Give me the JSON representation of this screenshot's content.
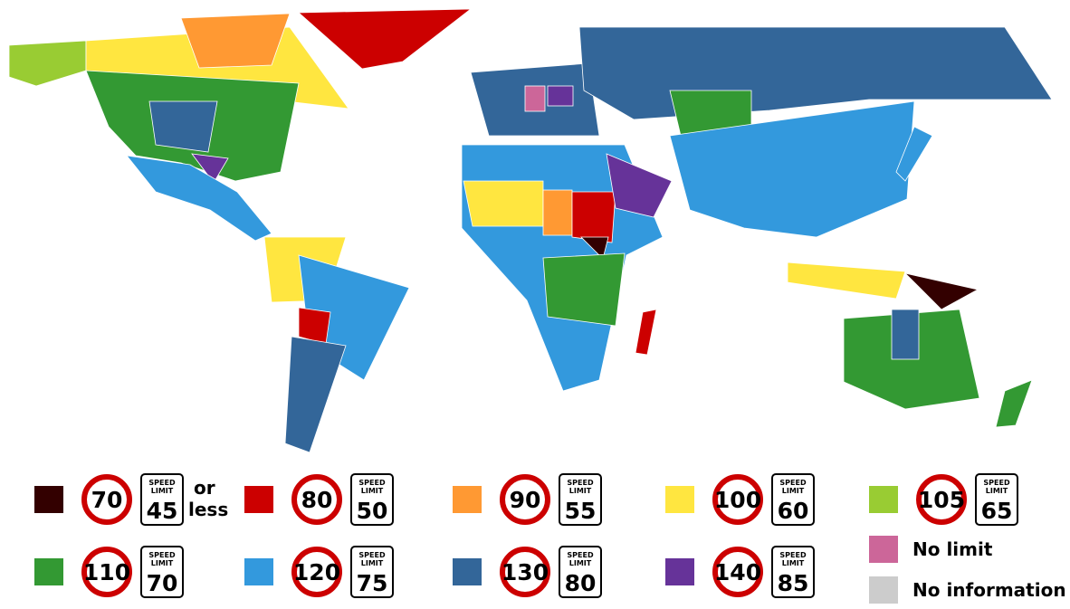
{
  "legend": {
    "sign_text": {
      "top": "SPEED",
      "bottom": "LIMIT"
    },
    "items": [
      {
        "color": "#330000",
        "kmh": 70,
        "mph": 45,
        "note": "or less"
      },
      {
        "color": "#cc0000",
        "kmh": 80,
        "mph": 50
      },
      {
        "color": "#ff9933",
        "kmh": 90,
        "mph": 55
      },
      {
        "color": "#ffe640",
        "kmh": 100,
        "mph": 60
      },
      {
        "color": "#99cc33",
        "kmh": 105,
        "mph": 65
      },
      {
        "color": "#339933",
        "kmh": 110,
        "mph": 70
      },
      {
        "color": "#3399dd",
        "kmh": 120,
        "mph": 75
      },
      {
        "color": "#336699",
        "kmh": 130,
        "mph": 80
      },
      {
        "color": "#663399",
        "kmh": 140,
        "mph": 85
      },
      {
        "color": "#cc6699",
        "label": "No limit"
      },
      {
        "color": "#cccccc",
        "label": "No information"
      }
    ]
  }
}
